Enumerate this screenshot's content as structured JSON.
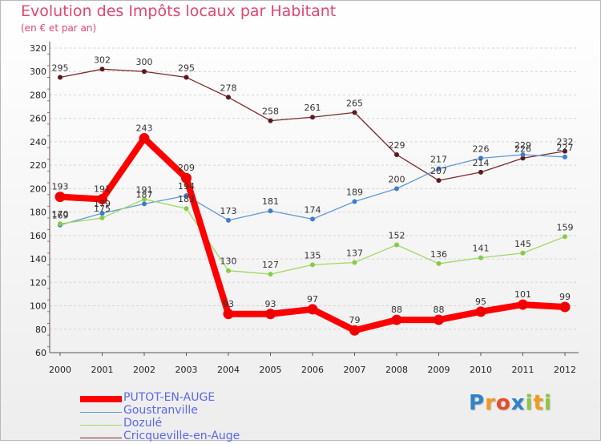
{
  "header": {
    "title": "Evolution des Impôts locaux par Habitant",
    "subtitle": "(en € et par an)"
  },
  "colors": {
    "title": "#e0466e",
    "axis": "#555555",
    "grid": "#d4d4d4",
    "legend_text": "#5a68ee"
  },
  "chart_data": {
    "type": "line",
    "title": "Evolution des Impôts locaux par Habitant",
    "subtitle": "(en € et par an)",
    "xlabel": "",
    "ylabel": "",
    "x": [
      "2000",
      "2001",
      "2002",
      "2003",
      "2004",
      "2005",
      "2006",
      "2007",
      "2008",
      "2009",
      "2010",
      "2011",
      "2012"
    ],
    "ylim": [
      60,
      320
    ],
    "ytick_step": 20,
    "grid": "horizontal dashed",
    "legend_position": "bottom-left",
    "series": [
      {
        "name": "Cricqueville-en-Auge",
        "color": "#7a2a2a",
        "marker": "#5a1a1a",
        "width": "thin",
        "values": [
          295,
          302,
          300,
          295,
          278,
          258,
          261,
          265,
          229,
          207,
          214,
          226,
          232
        ]
      },
      {
        "name": "Goustranville",
        "color": "#5f9ad8",
        "marker": "#3f7ec6",
        "width": "thin",
        "values": [
          169,
          179,
          187,
          194,
          173,
          181,
          174,
          189,
          200,
          217,
          226,
          229,
          227
        ]
      },
      {
        "name": "Dozulé",
        "color": "#9ed860",
        "marker": "#86cc45",
        "width": "thin",
        "values": [
          170,
          175,
          191,
          183,
          130,
          127,
          135,
          137,
          152,
          136,
          141,
          145,
          159
        ]
      },
      {
        "name": "PUTOT-EN-AUGE",
        "color": "#ff0000",
        "marker": "#ee0000",
        "width": "thick",
        "values": [
          193,
          191,
          243,
          209,
          93,
          93,
          97,
          79,
          88,
          88,
          95,
          101,
          99
        ]
      }
    ],
    "legend_order": [
      "PUTOT-EN-AUGE",
      "Goustranville",
      "Dozulé",
      "Cricqueville-en-Auge"
    ]
  },
  "legend": [
    {
      "label": "PUTOT-EN-AUGE",
      "color": "#ff0000"
    },
    {
      "label": "Goustranville",
      "color": "#5f9ad8"
    },
    {
      "label": "Dozulé",
      "color": "#9ed860"
    },
    {
      "label": "Cricqueville-en-Auge",
      "color": "#7a2a2a"
    }
  ],
  "logo": {
    "text": "Proxiti",
    "letters": [
      {
        "ch": "P",
        "color": "#2f83c8"
      },
      {
        "ch": "r",
        "color": "#f39a1e"
      },
      {
        "ch": "o",
        "color": "#e94b2b"
      },
      {
        "ch": "x",
        "color": "#2f83c8"
      },
      {
        "ch": "i",
        "color": "#8cc63f"
      },
      {
        "ch": "t",
        "color": "#f39a1e"
      },
      {
        "ch": "i",
        "color": "#8cc63f"
      }
    ]
  }
}
